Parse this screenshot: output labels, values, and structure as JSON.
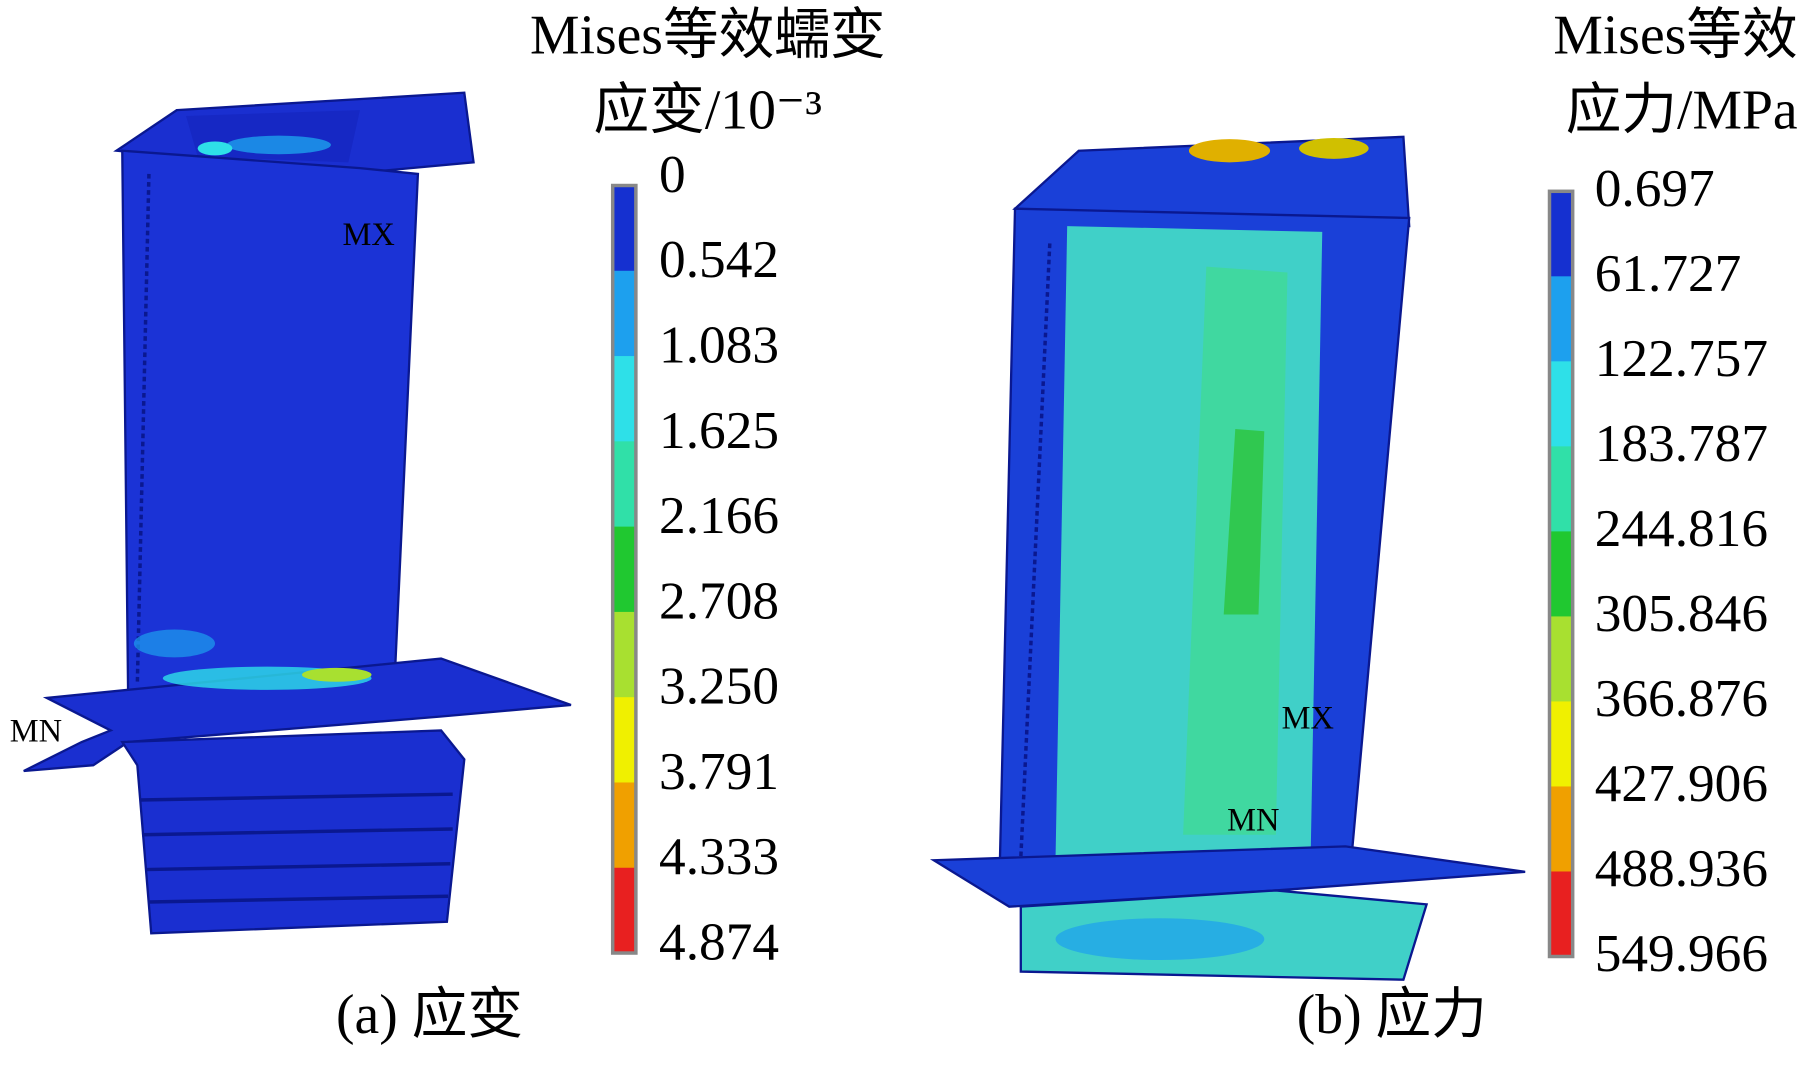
{
  "panels": [
    {
      "title": [
        "Mises等效蠕变",
        "应变/10⁻³"
      ],
      "legend": [
        "0",
        "0.542",
        "1.083",
        "1.625",
        "2.166",
        "2.708",
        "3.250",
        "3.791",
        "4.333",
        "4.874"
      ],
      "annotations": [
        "MX",
        "MN"
      ],
      "caption": "(a) 应变"
    },
    {
      "title": [
        "Mises等效",
        "应力/MPa"
      ],
      "legend": [
        "0.697",
        "61.727",
        "122.757",
        "183.787",
        "244.816",
        "305.846",
        "366.876",
        "427.906",
        "488.936",
        "549.966"
      ],
      "annotations": [
        "MX",
        "MN"
      ],
      "caption": "(b) 应力"
    }
  ]
}
